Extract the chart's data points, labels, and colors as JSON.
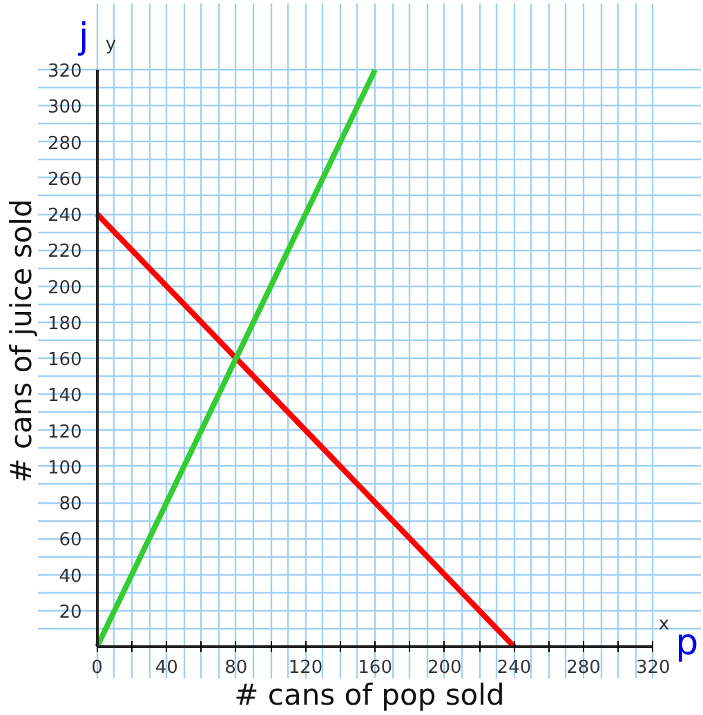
{
  "chart_data": {
    "type": "line",
    "xlabel": "# cans of pop sold",
    "ylabel": "# cans of juice sold",
    "annotations": [
      "j",
      "y",
      "x",
      "p"
    ],
    "xlim": [
      0,
      320
    ],
    "ylim": [
      0,
      320
    ],
    "xticks": [
      0,
      {
        "value": 20,
        "label": null
      },
      40,
      {
        "value": 60,
        "label": null
      },
      80,
      {
        "value": 100,
        "label": null
      },
      120,
      {
        "value": 140,
        "label": null
      },
      160,
      {
        "value": 180,
        "label": null
      },
      200,
      {
        "value": 220,
        "label": null
      },
      240,
      {
        "value": 260,
        "label": null
      },
      280,
      {
        "value": 300,
        "label": null
      },
      320
    ],
    "yticks": [
      20,
      40,
      60,
      80,
      100,
      120,
      140,
      160,
      180,
      200,
      220,
      240,
      260,
      280,
      300,
      320
    ],
    "grid": true,
    "marker": "none",
    "line_style": "solid",
    "series": [
      {
        "color": "#ff0000",
        "x": [
          0,
          240
        ],
        "values": [
          240,
          0
        ]
      },
      {
        "color": "#33cc33",
        "x": [
          0,
          160
        ],
        "values": [
          0,
          320
        ]
      }
    ]
  }
}
